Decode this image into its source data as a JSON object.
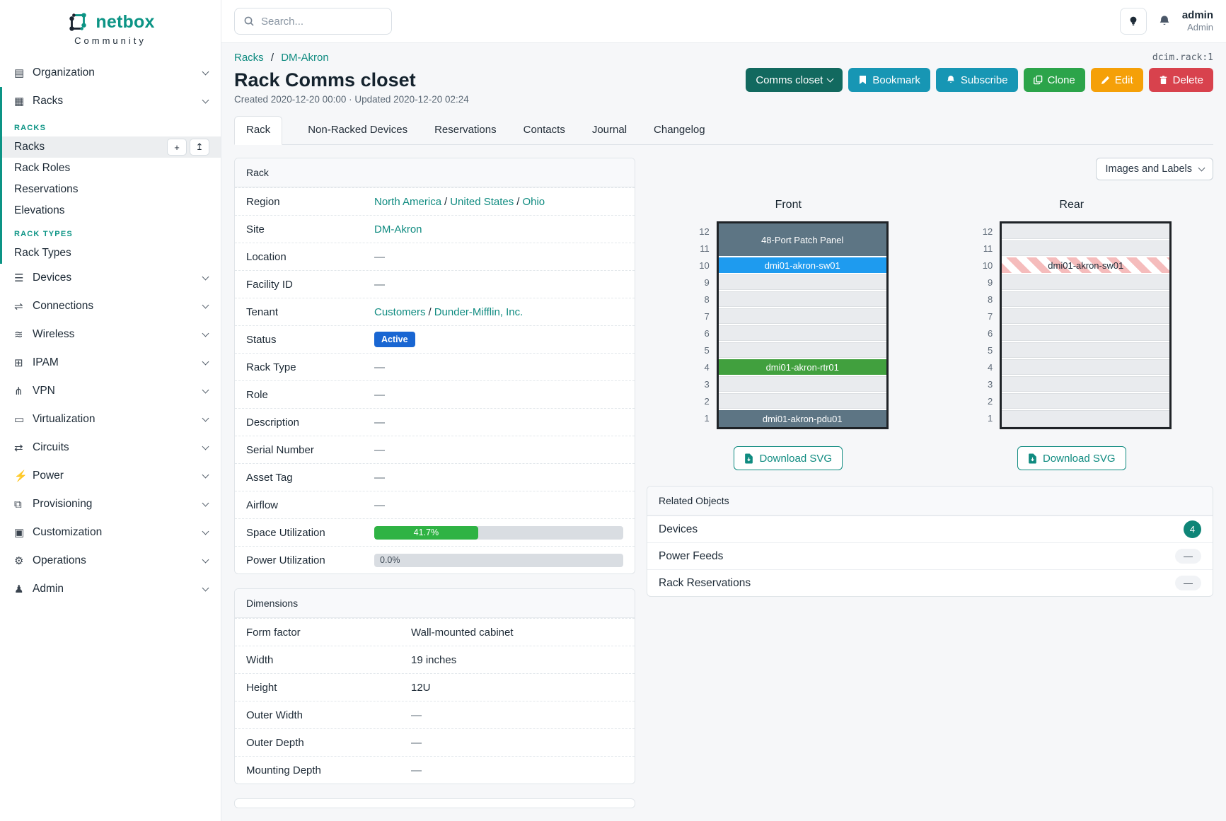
{
  "brand": {
    "name": "netbox",
    "subtitle": "Community"
  },
  "topbar": {
    "search_placeholder": "Search...",
    "username": "admin",
    "role": "Admin"
  },
  "sidebar": {
    "organization": {
      "label": "Organization",
      "icon": "building-icon",
      "glyph": "▤"
    },
    "racks_group": {
      "label": "Racks",
      "icon": "rack-icon",
      "glyph": "▦"
    },
    "racks_section": {
      "heading": "RACKS",
      "items": [
        {
          "label": "Racks",
          "active": true
        },
        {
          "label": "Rack Roles"
        },
        {
          "label": "Reservations"
        },
        {
          "label": "Elevations"
        }
      ],
      "add_icon": "+",
      "import_icon": "↥"
    },
    "rack_types_section": {
      "heading": "RACK TYPES",
      "items": [
        {
          "label": "Rack Types"
        }
      ]
    },
    "menu": [
      {
        "label": "Devices",
        "icon": "server-stack-icon",
        "glyph": "☰"
      },
      {
        "label": "Connections",
        "icon": "plug-icon",
        "glyph": "⇌"
      },
      {
        "label": "Wireless",
        "icon": "wifi-icon",
        "glyph": "≋"
      },
      {
        "label": "IPAM",
        "icon": "ip-card-icon",
        "glyph": "⊞"
      },
      {
        "label": "VPN",
        "icon": "network-nodes-icon",
        "glyph": "⋔"
      },
      {
        "label": "Virtualization",
        "icon": "monitor-icon",
        "glyph": "▭"
      },
      {
        "label": "Circuits",
        "icon": "swap-arrows-icon",
        "glyph": "⇄"
      },
      {
        "label": "Power",
        "icon": "bolt-icon",
        "glyph": "⚡"
      },
      {
        "label": "Provisioning",
        "icon": "document-icon",
        "glyph": "⧉"
      },
      {
        "label": "Customization",
        "icon": "toolbox-icon",
        "glyph": "▣"
      },
      {
        "label": "Operations",
        "icon": "gears-icon",
        "glyph": "⚙"
      },
      {
        "label": "Admin",
        "icon": "users-icon",
        "glyph": "♟"
      }
    ]
  },
  "page": {
    "object_ref": "dcim.rack:1",
    "breadcrumb": {
      "parent": "Racks",
      "separator": "/",
      "current": "DM-Akron"
    },
    "title": "Rack Comms closet",
    "meta": "Created 2020-12-20 00:00 · Updated 2020-12-20 02:24",
    "actions": {
      "name_menu": {
        "label": "Comms closet",
        "icon": "chevron-down-icon"
      },
      "bookmark": {
        "label": "Bookmark",
        "icon": "bookmark-icon"
      },
      "subscribe": {
        "label": "Subscribe",
        "icon": "bell-icon"
      },
      "clone": {
        "label": "Clone",
        "icon": "copy-icon"
      },
      "edit": {
        "label": "Edit",
        "icon": "pencil-icon"
      },
      "delete": {
        "label": "Delete",
        "icon": "trash-icon"
      }
    },
    "tabs": [
      {
        "label": "Rack",
        "active": true
      },
      {
        "label": "Non-Racked Devices"
      },
      {
        "label": "Reservations"
      },
      {
        "label": "Contacts"
      },
      {
        "label": "Journal"
      },
      {
        "label": "Changelog"
      }
    ]
  },
  "rack_panel": {
    "title": "Rack",
    "rows": {
      "region": {
        "label": "Region",
        "links": [
          "North America",
          "United States",
          "Ohio"
        ],
        "sep": "/"
      },
      "site": {
        "label": "Site",
        "link": "DM-Akron"
      },
      "location": {
        "label": "Location",
        "value": "—"
      },
      "facility_id": {
        "label": "Facility ID",
        "value": "—"
      },
      "tenant": {
        "label": "Tenant",
        "links": [
          "Customers",
          "Dunder-Mifflin, Inc."
        ],
        "sep": "/"
      },
      "status": {
        "label": "Status",
        "badge": "Active",
        "badge_color": "#1966d2"
      },
      "rack_type": {
        "label": "Rack Type",
        "value": "—"
      },
      "role": {
        "label": "Role",
        "value": "—"
      },
      "description": {
        "label": "Description",
        "value": "—"
      },
      "serial_number": {
        "label": "Serial Number",
        "value": "—"
      },
      "asset_tag": {
        "label": "Asset Tag",
        "value": "—"
      },
      "airflow": {
        "label": "Airflow",
        "value": "—"
      },
      "space_utilization": {
        "label": "Space Utilization",
        "percent_label": "41.7%",
        "width": "41.7%",
        "bar_color": "#2fb344"
      },
      "power_utilization": {
        "label": "Power Utilization",
        "percent_label": "0.0%",
        "width": "0%"
      }
    }
  },
  "dimensions_panel": {
    "title": "Dimensions",
    "form_factor": {
      "label": "Form factor",
      "value": "Wall-mounted cabinet"
    },
    "width": {
      "label": "Width",
      "value": "19 inches"
    },
    "height": {
      "label": "Height",
      "value": "12U"
    },
    "outer_width": {
      "label": "Outer Width",
      "value": "—"
    },
    "outer_depth": {
      "label": "Outer Depth",
      "value": "—"
    },
    "mounting_depth": {
      "label": "Mounting Depth",
      "value": "—"
    }
  },
  "elevations": {
    "display_mode": "Images and Labels",
    "download_label": "Download SVG",
    "unit_numbers": [
      "12",
      "11",
      "10",
      "9",
      "8",
      "7",
      "6",
      "5",
      "4",
      "3",
      "2",
      "1"
    ],
    "front": {
      "title": "Front",
      "devices": [
        {
          "name": "48-Port Patch Panel",
          "position": "U11-U12",
          "color": "#5d7584"
        },
        {
          "name": "dmi01-akron-sw01",
          "position": "U10",
          "color": "#1e9bef"
        },
        {
          "name": "dmi01-akron-rtr01",
          "position": "U4",
          "color": "#41a03e"
        },
        {
          "name": "dmi01-akron-pdu01",
          "position": "U1",
          "color": "#5d7584"
        }
      ]
    },
    "rear": {
      "title": "Rear",
      "devices": [
        {
          "name": "dmi01-akron-sw01",
          "position": "U10",
          "pattern": "red-striped"
        }
      ]
    }
  },
  "related_panel": {
    "title": "Related Objects",
    "rows": [
      {
        "label": "Devices",
        "count": "4"
      },
      {
        "label": "Power Feeds",
        "count": "—"
      },
      {
        "label": "Rack Reservations",
        "count": "—"
      }
    ]
  },
  "colors": {
    "brand_teal": "#0c9485",
    "link_teal": "#0f8b80",
    "status_active_blue": "#1966d2",
    "utilization_green": "#2fb344",
    "device_slate": "#5d7584",
    "device_blue": "#1e9bef",
    "device_green": "#41a03e",
    "reserved_stripe_pink": "#f5bcbc",
    "count_badge_teal": "#0e8577",
    "button_dark_teal": "#12695f",
    "button_cyan": "#1796b4",
    "button_green": "#2ca44a",
    "button_orange": "#f5a008",
    "button_red": "#d8424d"
  }
}
